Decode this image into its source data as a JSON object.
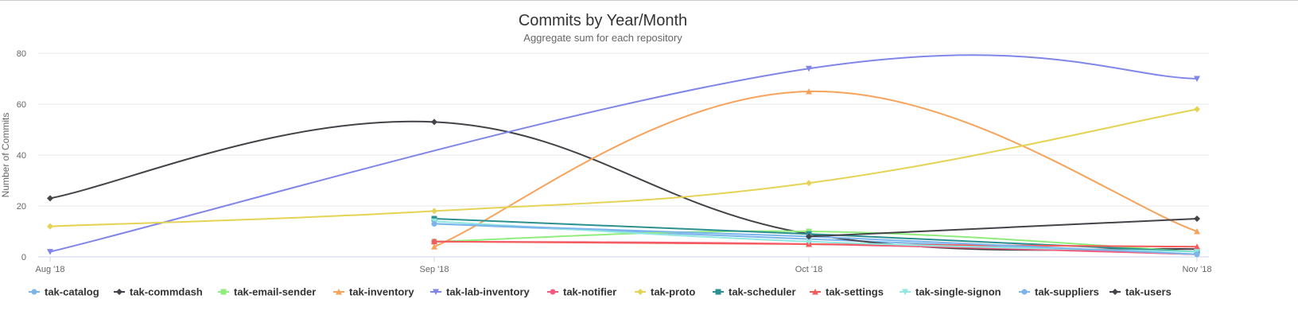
{
  "chart_data": {
    "type": "line",
    "title": "Commits by Year/Month",
    "subtitle": "Aggregate sum for each repository",
    "ylabel": "Number of Commits",
    "xlabel": "",
    "categories": [
      "Aug '18",
      "Sep '18",
      "Oct '18",
      "Nov '18"
    ],
    "ylim": [
      0,
      80
    ],
    "yticks": [
      0,
      20,
      40,
      60,
      80
    ],
    "grid": true,
    "legend_position": "bottom-left",
    "series": [
      {
        "name": "tak-catalog",
        "color": "#7cb5ec",
        "marker": "circle",
        "values": [
          null,
          13,
          7,
          1
        ]
      },
      {
        "name": "tak-commdash",
        "color": "#434348",
        "marker": "diamond",
        "values": [
          23,
          53,
          9,
          3
        ]
      },
      {
        "name": "tak-email-sender",
        "color": "#90ed7d",
        "marker": "square",
        "values": [
          null,
          6,
          10,
          2
        ]
      },
      {
        "name": "tak-inventory",
        "color": "#f7a35c",
        "marker": "triangle",
        "values": [
          null,
          4,
          65,
          10
        ]
      },
      {
        "name": "tak-lab-inventory",
        "color": "#8085e9",
        "marker": "triangle-down",
        "values": [
          2,
          null,
          74,
          70
        ]
      },
      {
        "name": "tak-notifier",
        "color": "#f15c80",
        "marker": "circle",
        "values": [
          null,
          6,
          5,
          1
        ]
      },
      {
        "name": "tak-proto",
        "color": "#e4d354",
        "marker": "diamond",
        "values": [
          12,
          18,
          29,
          58
        ]
      },
      {
        "name": "tak-scheduler",
        "color": "#2b908f",
        "marker": "square",
        "values": [
          null,
          15,
          9,
          2
        ]
      },
      {
        "name": "tak-settings",
        "color": "#f45b5b",
        "marker": "triangle",
        "values": [
          null,
          6,
          5,
          4
        ]
      },
      {
        "name": "tak-single-signon",
        "color": "#91e8e1",
        "marker": "triangle-down",
        "values": [
          null,
          14,
          6,
          2
        ]
      },
      {
        "name": "tak-suppliers",
        "color": "#7cb5ec",
        "marker": "circle",
        "values": [
          null,
          13,
          8,
          1
        ]
      },
      {
        "name": "tak-users",
        "color": "#434348",
        "marker": "diamond",
        "values": [
          null,
          null,
          8,
          15
        ]
      }
    ]
  }
}
